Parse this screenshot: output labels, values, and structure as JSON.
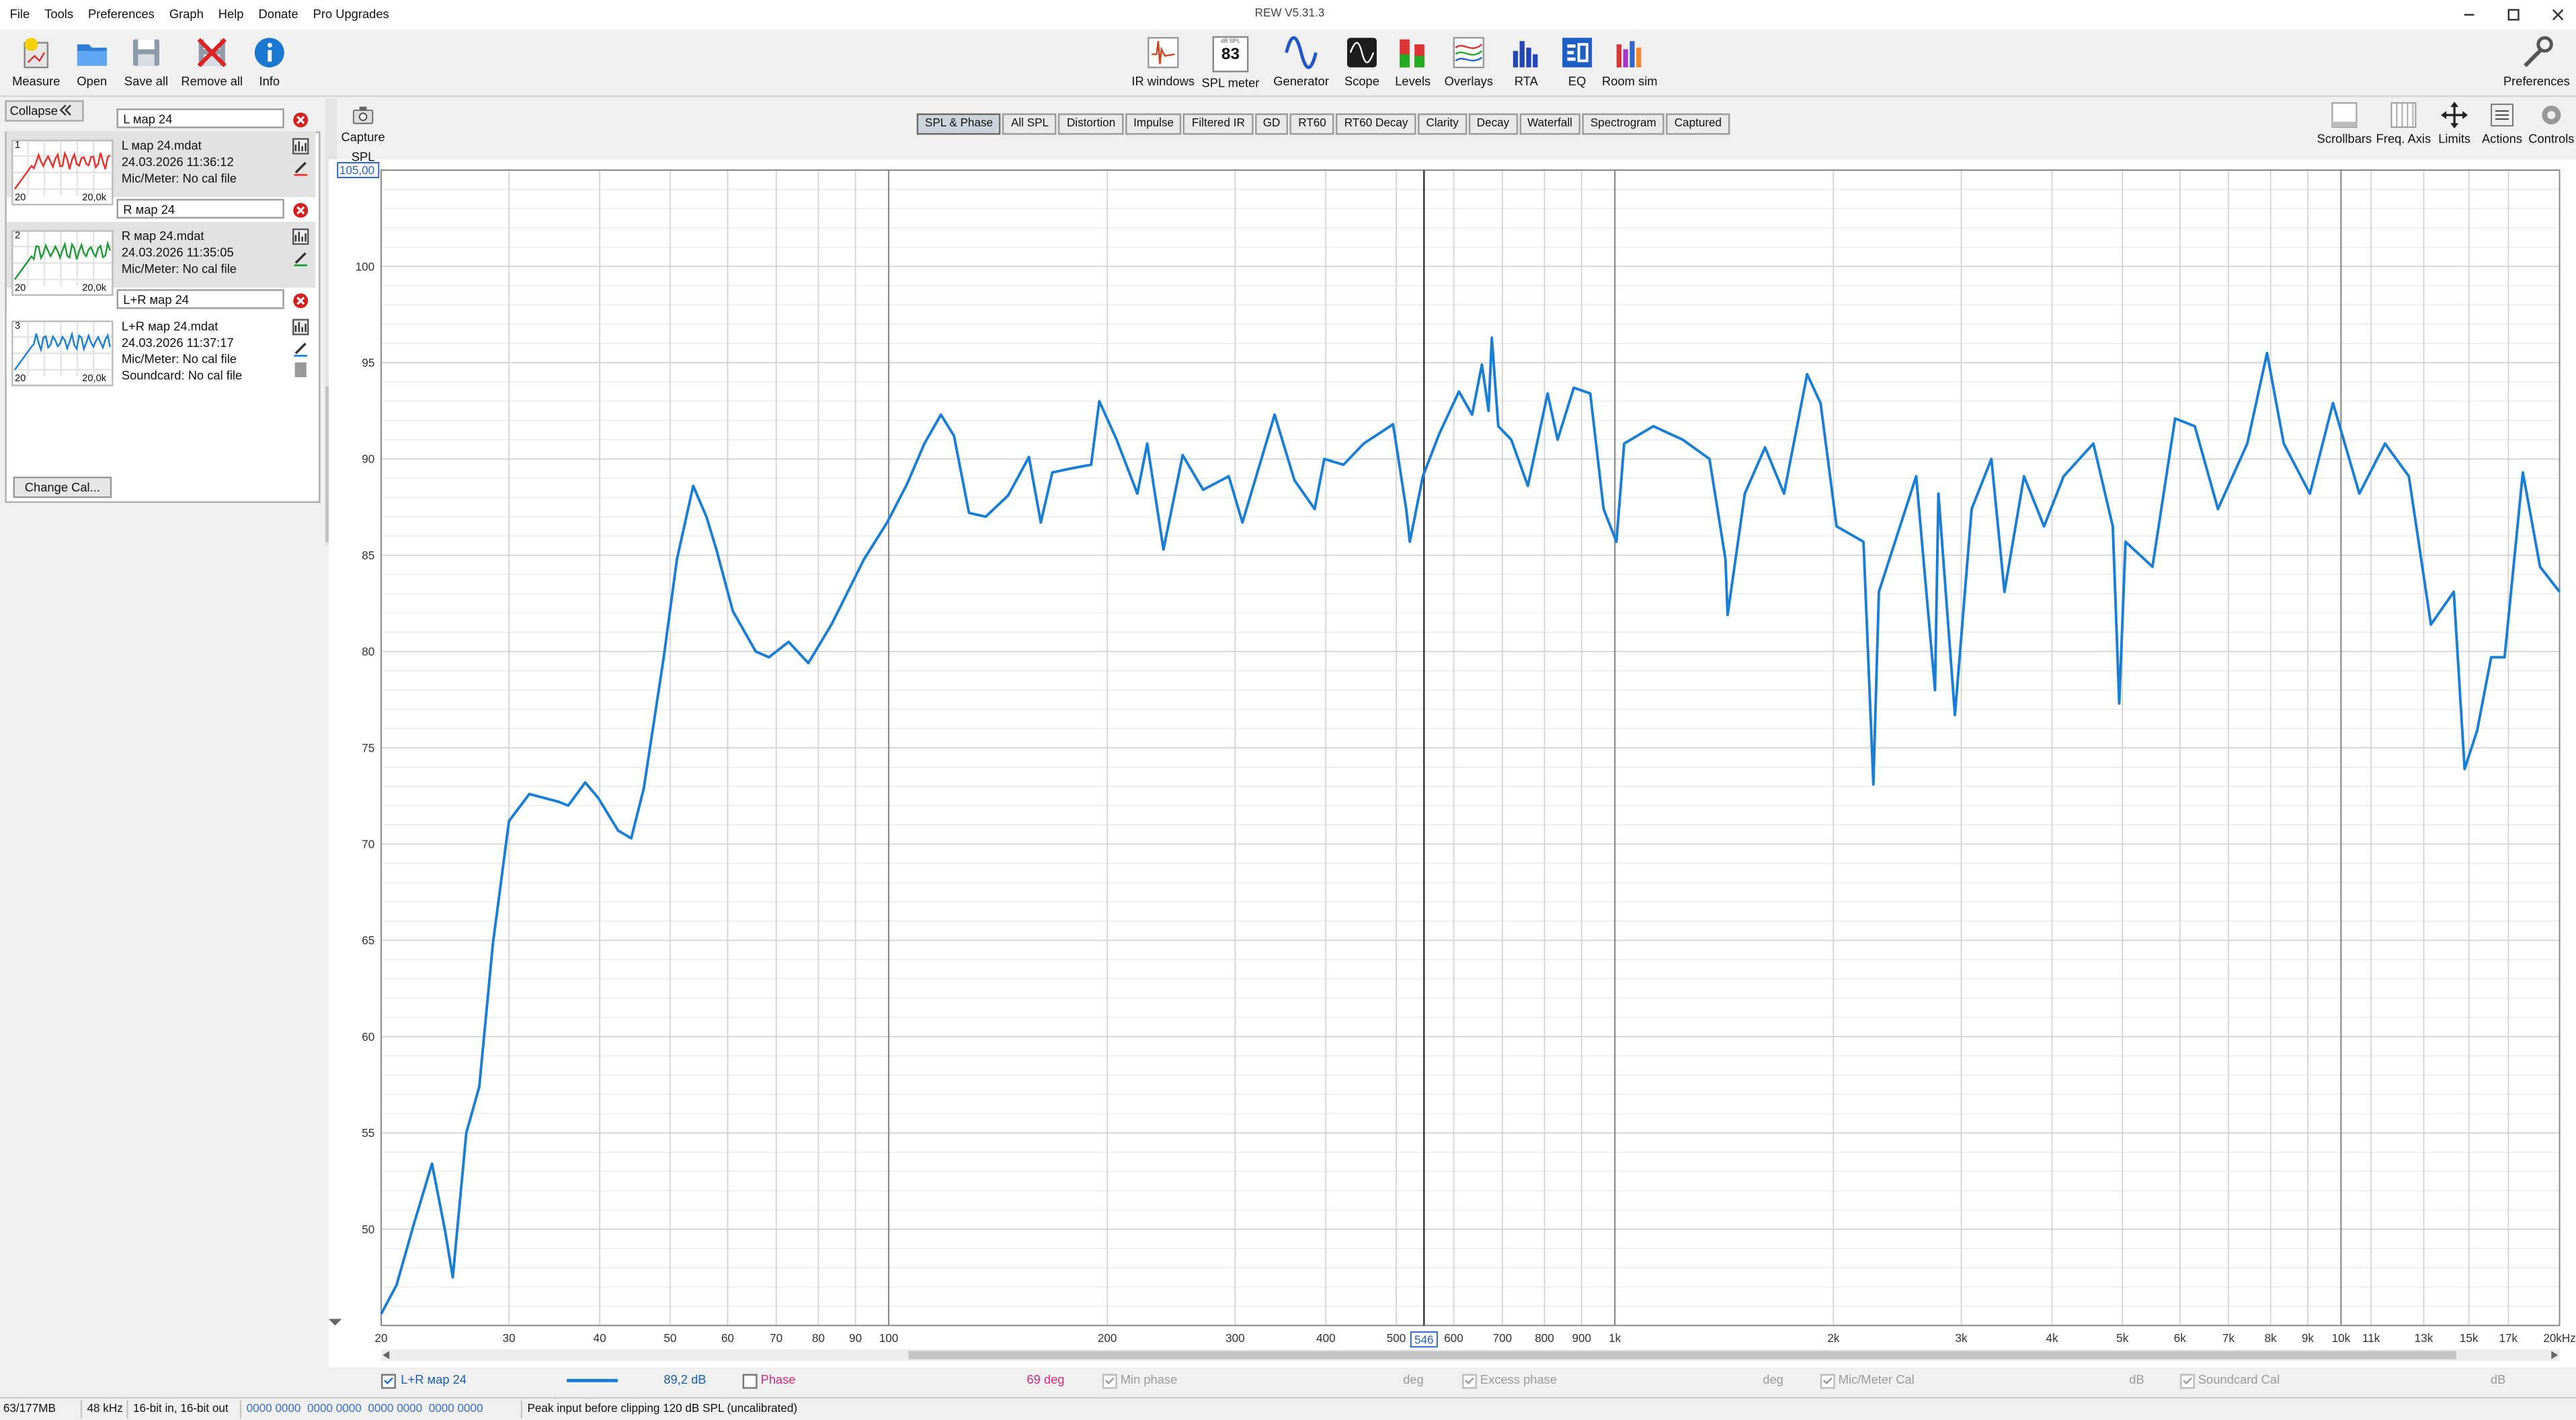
{
  "window": {
    "title": "REW V5.31.3"
  },
  "menu": [
    "File",
    "Tools",
    "Preferences",
    "Graph",
    "Help",
    "Donate",
    "Pro Upgrades"
  ],
  "toolbar_left": [
    "Measure",
    "Open",
    "Save all",
    "Remove all",
    "Info"
  ],
  "toolbar_center": [
    "IR windows",
    "SPL meter",
    "Generator",
    "Scope",
    "Levels",
    "Overlays",
    "RTA",
    "EQ",
    "Room sim"
  ],
  "spl_meter": {
    "unit": "dB SPL",
    "value": 83
  },
  "toolbar_right": [
    "Preferences"
  ],
  "panel": {
    "collapse": "Collapse",
    "thumb_axis": [
      "20",
      "20,0k"
    ],
    "selected": 2,
    "measurements": [
      {
        "index": 1,
        "name": "L мар 24",
        "file": "L мар 24.mdat",
        "date": "24.03.2026 11:36:12",
        "mic": "Mic/Meter: No cal file",
        "color": "#e8302a"
      },
      {
        "index": 2,
        "name": "R мар 24",
        "file": "R мар 24.mdat",
        "date": "24.03.2026 11:35:05",
        "mic": "Mic/Meter: No cal file",
        "color": "#1f9a3a"
      },
      {
        "index": 3,
        "name": "L+R мар 24",
        "file": "L+R мар 24.mdat",
        "date": "24.03.2026 11:37:17",
        "mic": "Mic/Meter: No cal file",
        "soundcard": "Soundcard: No cal file",
        "color": "#1a7fd4"
      }
    ],
    "change_cal": "Change Cal..."
  },
  "capture": [
    "Capture",
    "SPL"
  ],
  "tabs": [
    "SPL & Phase",
    "All SPL",
    "Distortion",
    "Impulse",
    "Filtered IR",
    "GD",
    "RT60",
    "RT60 Decay",
    "Clarity",
    "Decay",
    "Waterfall",
    "Spectrogram",
    "Captured"
  ],
  "selected_tab": 0,
  "view_tools": [
    "Scrollbars",
    "Freq. Axis",
    "Limits",
    "Actions",
    "Controls"
  ],
  "chart_data": {
    "type": "line",
    "log_x": true,
    "grid": true,
    "xlim": [
      20,
      20000
    ],
    "ylim": [
      45,
      105
    ],
    "xticks": [
      20,
      30,
      40,
      50,
      60,
      70,
      80,
      90,
      100,
      200,
      300,
      400,
      500,
      600,
      700,
      800,
      900,
      {
        "value": 1000,
        "label": "1k"
      },
      {
        "value": 2000,
        "label": "2k"
      },
      {
        "value": 3000,
        "label": "3k"
      },
      {
        "value": 4000,
        "label": "4k"
      },
      {
        "value": 5000,
        "label": "5k"
      },
      {
        "value": 6000,
        "label": "6k"
      },
      {
        "value": 7000,
        "label": "7k"
      },
      {
        "value": 8000,
        "label": "8k"
      },
      {
        "value": 9000,
        "label": "9k"
      },
      {
        "value": 10000,
        "label": "10k"
      },
      {
        "value": 11000,
        "label": "11k"
      },
      {
        "value": 13000,
        "label": "13k"
      },
      {
        "value": 15000,
        "label": "15k"
      },
      {
        "value": 17000,
        "label": "17k"
      },
      {
        "value": 20000,
        "label": "20kHz"
      }
    ],
    "yticks": [
      50,
      55,
      60,
      65,
      70,
      75,
      80,
      85,
      90,
      95,
      100
    ],
    "minor_yticks": [
      46,
      47,
      48,
      49,
      51,
      52,
      53,
      54,
      56,
      57,
      58,
      59,
      61,
      62,
      63,
      64,
      66,
      67,
      68,
      69,
      71,
      72,
      73,
      74,
      76,
      77,
      78,
      79,
      81,
      82,
      83,
      84,
      86,
      87,
      88,
      89,
      91,
      92,
      93,
      94,
      96,
      97,
      98,
      99,
      101,
      102,
      103,
      104
    ],
    "y_readout": {
      "value": 105,
      "label": "105,00"
    },
    "cursor": {
      "x": 546
    },
    "x": [
      20,
      21.0,
      22.2,
      23.5,
      24.5,
      25.1,
      26.2,
      27.3,
      28.5,
      30.0,
      32.0,
      35.1,
      36.2,
      38.2,
      39.8,
      42.4,
      44.2,
      46.0,
      49.0,
      51.1,
      53.8,
      56.1,
      57.9,
      61.0,
      65.6,
      68.4,
      72.8,
      77.5,
      83.4,
      92.5,
      99.5,
      106,
      112,
      118,
      123,
      129,
      136,
      146,
      156,
      162,
      168,
      178,
      190,
      195,
      206,
      220,
      227,
      239,
      254,
      271,
      294,
      307,
      340,
      362,
      386,
      398,
      423,
      451,
      495,
      516,
      522,
      544,
      573,
      610,
      636,
      656,
      670,
      677,
      691,
      720,
      759,
      808,
      834,
      878,
      925,
      965,
      1005,
      1030,
      1130,
      1240,
      1350,
      1420,
      1430,
      1510,
      1610,
      1710,
      1840,
      1920,
      2020,
      2200,
      2270,
      2310,
      2600,
      2760,
      2790,
      2940,
      3100,
      3300,
      3440,
      3660,
      3900,
      4150,
      4560,
      4850,
      4950,
      5050,
      5500,
      5910,
      6290,
      6770,
      7430,
      7910,
      8340,
      9060,
      9750,
      10600,
      11500,
      12400,
      13300,
      14300,
      14800,
      15400,
      16100,
      16800,
      17800,
      18800,
      20000
    ],
    "series": [
      {
        "name": "L+R мар 24",
        "color": "#1a7fd4",
        "values": [
          45.6,
          47.1,
          50.3,
          53.4,
          49.9,
          47.5,
          55.0,
          57.4,
          64.8,
          71.2,
          72.6,
          72.2,
          72.0,
          73.2,
          72.4,
          70.7,
          70.3,
          72.9,
          79.7,
          84.8,
          88.6,
          87.0,
          85.3,
          82.1,
          80.0,
          79.7,
          80.5,
          79.4,
          81.4,
          84.8,
          86.7,
          88.7,
          90.8,
          92.3,
          91.2,
          87.2,
          87.0,
          88.1,
          90.1,
          86.7,
          89.3,
          89.5,
          89.7,
          93.0,
          91.0,
          88.2,
          90.8,
          85.3,
          90.2,
          88.4,
          89.1,
          86.7,
          92.3,
          88.9,
          87.4,
          90.0,
          89.7,
          90.8,
          91.8,
          87.4,
          85.7,
          89.1,
          91.3,
          93.5,
          92.3,
          94.9,
          92.5,
          96.3,
          91.7,
          91.0,
          88.6,
          93.4,
          91.0,
          93.7,
          93.4,
          87.4,
          85.7,
          90.8,
          91.7,
          91.0,
          90.0,
          84.8,
          81.9,
          88.2,
          90.6,
          88.2,
          94.4,
          92.9,
          86.5,
          85.7,
          73.1,
          83.1,
          89.1,
          78.0,
          88.2,
          76.7,
          87.4,
          90.0,
          83.1,
          89.1,
          86.5,
          89.1,
          90.8,
          86.5,
          77.3,
          85.7,
          84.4,
          92.1,
          91.7,
          87.4,
          90.8,
          95.5,
          90.8,
          88.2,
          92.9,
          88.2,
          90.8,
          89.1,
          81.4,
          83.1,
          73.9,
          75.9,
          79.7,
          79.7,
          89.3,
          84.4,
          83.1
        ]
      }
    ]
  },
  "controls_row": {
    "series_checked": true,
    "spl_readout": {
      "value": 89.2,
      "label": "89,2 dB"
    },
    "phase": {
      "label": "Phase",
      "checked": false,
      "readout": {
        "value": 69,
        "label": "69 deg"
      }
    },
    "min_phase": {
      "label": "Min phase",
      "checked": true,
      "unit": "deg"
    },
    "excess_phase": {
      "label": "Excess phase",
      "checked": true,
      "unit": "deg"
    },
    "mic_cal": {
      "label": "Mic/Meter Cal",
      "checked": true,
      "unit": "dB"
    },
    "soundcard_cal": {
      "label": "Soundcard Cal",
      "checked": true,
      "unit": "dB"
    }
  },
  "status": [
    "63/177MB",
    "48 kHz",
    "16-bit in, 16-bit out",
    "0000 0000  0000 0000  0000 0000  0000 0000",
    "Peak input before clipping 120 dB SPL (uncalibrated)"
  ]
}
